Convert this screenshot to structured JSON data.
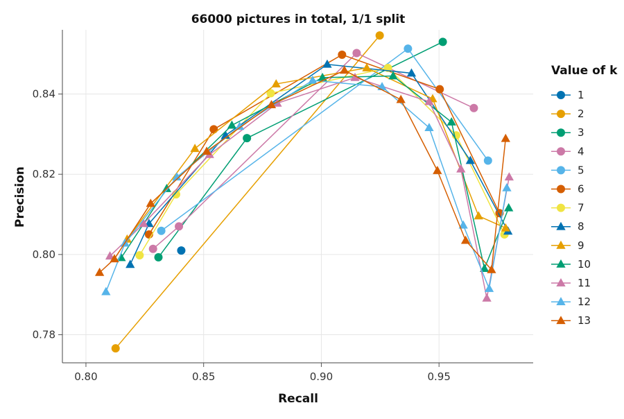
{
  "chart_data": {
    "type": "line",
    "title": "66000 pictures in total, 1/1 split",
    "xlabel": "Recall",
    "ylabel": "Precision",
    "xlim": [
      0.79,
      0.99
    ],
    "ylim": [
      0.773,
      0.856
    ],
    "xticks": [
      0.8,
      0.85,
      0.9,
      0.95
    ],
    "xtick_labels": [
      "0.80",
      "0.85",
      "0.90",
      "0.95"
    ],
    "yticks": [
      0.78,
      0.8,
      0.82,
      0.84
    ],
    "ytick_labels": [
      "0.78",
      "0.80",
      "0.82",
      "0.84"
    ],
    "grid": true,
    "legend": {
      "title": "Value of k",
      "placement": "right"
    },
    "series": [
      {
        "name": "1",
        "marker": "circle",
        "color": "#0072B2",
        "points": [
          [
            0.8405,
            0.801
          ]
        ]
      },
      {
        "name": "2",
        "marker": "circle",
        "color": "#E69F00",
        "points": [
          [
            0.8126,
            0.7766
          ],
          [
            0.9248,
            0.8546
          ]
        ]
      },
      {
        "name": "3",
        "marker": "circle",
        "color": "#009E73",
        "points": [
          [
            0.8308,
            0.7993
          ],
          [
            0.8684,
            0.829
          ],
          [
            0.9516,
            0.853
          ]
        ]
      },
      {
        "name": "4",
        "marker": "circle",
        "color": "#CC79A7",
        "points": [
          [
            0.8285,
            0.8014
          ],
          [
            0.8395,
            0.807
          ],
          [
            0.915,
            0.8502
          ],
          [
            0.9648,
            0.8365
          ]
        ]
      },
      {
        "name": "5",
        "marker": "circle",
        "color": "#56B4E9",
        "points": [
          [
            0.832,
            0.8059
          ],
          [
            0.9368,
            0.8513
          ],
          [
            0.9708,
            0.8234
          ]
        ]
      },
      {
        "name": "6",
        "marker": "circle",
        "color": "#D55E00",
        "points": [
          [
            0.8268,
            0.805
          ],
          [
            0.8543,
            0.8312
          ],
          [
            0.9088,
            0.8498
          ],
          [
            0.9503,
            0.8412
          ],
          [
            0.9757,
            0.8103
          ]
        ]
      },
      {
        "name": "7",
        "marker": "circle",
        "color": "#F0E442",
        "points": [
          [
            0.8228,
            0.7998
          ],
          [
            0.8383,
            0.815
          ],
          [
            0.8785,
            0.8402
          ],
          [
            0.9283,
            0.8465
          ],
          [
            0.9573,
            0.8297
          ],
          [
            0.9778,
            0.805
          ]
        ]
      },
      {
        "name": "8",
        "marker": "triangle",
        "color": "#0072B2",
        "points": [
          [
            0.8188,
            0.7975
          ],
          [
            0.8268,
            0.8077
          ],
          [
            0.8593,
            0.8297
          ],
          [
            0.9025,
            0.8474
          ],
          [
            0.9383,
            0.8452
          ],
          [
            0.9633,
            0.8234
          ],
          [
            0.9793,
            0.8058
          ]
        ]
      },
      {
        "name": "9",
        "marker": "triangle",
        "color": "#E69F00",
        "points": [
          [
            0.8175,
            0.8038
          ],
          [
            0.8463,
            0.8264
          ],
          [
            0.8808,
            0.8425
          ],
          [
            0.9193,
            0.8465
          ],
          [
            0.9473,
            0.8388
          ],
          [
            0.9668,
            0.8096
          ],
          [
            0.9783,
            0.8066
          ]
        ]
      },
      {
        "name": "10",
        "marker": "triangle",
        "color": "#009E73",
        "points": [
          [
            0.815,
            0.7992
          ],
          [
            0.8343,
            0.8164
          ],
          [
            0.862,
            0.8322
          ],
          [
            0.9005,
            0.8441
          ],
          [
            0.9305,
            0.8445
          ],
          [
            0.9553,
            0.833
          ],
          [
            0.9693,
            0.7965
          ],
          [
            0.9796,
            0.8116
          ]
        ]
      },
      {
        "name": "11",
        "marker": "triangle",
        "color": "#CC79A7",
        "points": [
          [
            0.8102,
            0.7996
          ],
          [
            0.8245,
            0.8077
          ],
          [
            0.8525,
            0.8249
          ],
          [
            0.8813,
            0.8377
          ],
          [
            0.9143,
            0.8441
          ],
          [
            0.9458,
            0.8381
          ],
          [
            0.9593,
            0.8213
          ],
          [
            0.9703,
            0.7891
          ],
          [
            0.9798,
            0.8193
          ]
        ]
      },
      {
        "name": "12",
        "marker": "triangle",
        "color": "#56B4E9",
        "points": [
          [
            0.8085,
            0.7907
          ],
          [
            0.8166,
            0.8028
          ],
          [
            0.8386,
            0.8193
          ],
          [
            0.8653,
            0.8319
          ],
          [
            0.8963,
            0.8434
          ],
          [
            0.9258,
            0.8418
          ],
          [
            0.9458,
            0.8316
          ],
          [
            0.9603,
            0.8073
          ],
          [
            0.9713,
            0.7915
          ],
          [
            0.9788,
            0.8166
          ]
        ]
      },
      {
        "name": "13",
        "marker": "triangle",
        "color": "#D55E00",
        "points": [
          [
            0.8058,
            0.7955
          ],
          [
            0.8121,
            0.7989
          ],
          [
            0.8275,
            0.8127
          ],
          [
            0.8513,
            0.8257
          ],
          [
            0.8788,
            0.8373
          ],
          [
            0.9098,
            0.8459
          ],
          [
            0.9338,
            0.8386
          ],
          [
            0.9493,
            0.8209
          ],
          [
            0.9613,
            0.8035
          ],
          [
            0.9723,
            0.7962
          ],
          [
            0.9783,
            0.8289
          ]
        ]
      }
    ]
  }
}
